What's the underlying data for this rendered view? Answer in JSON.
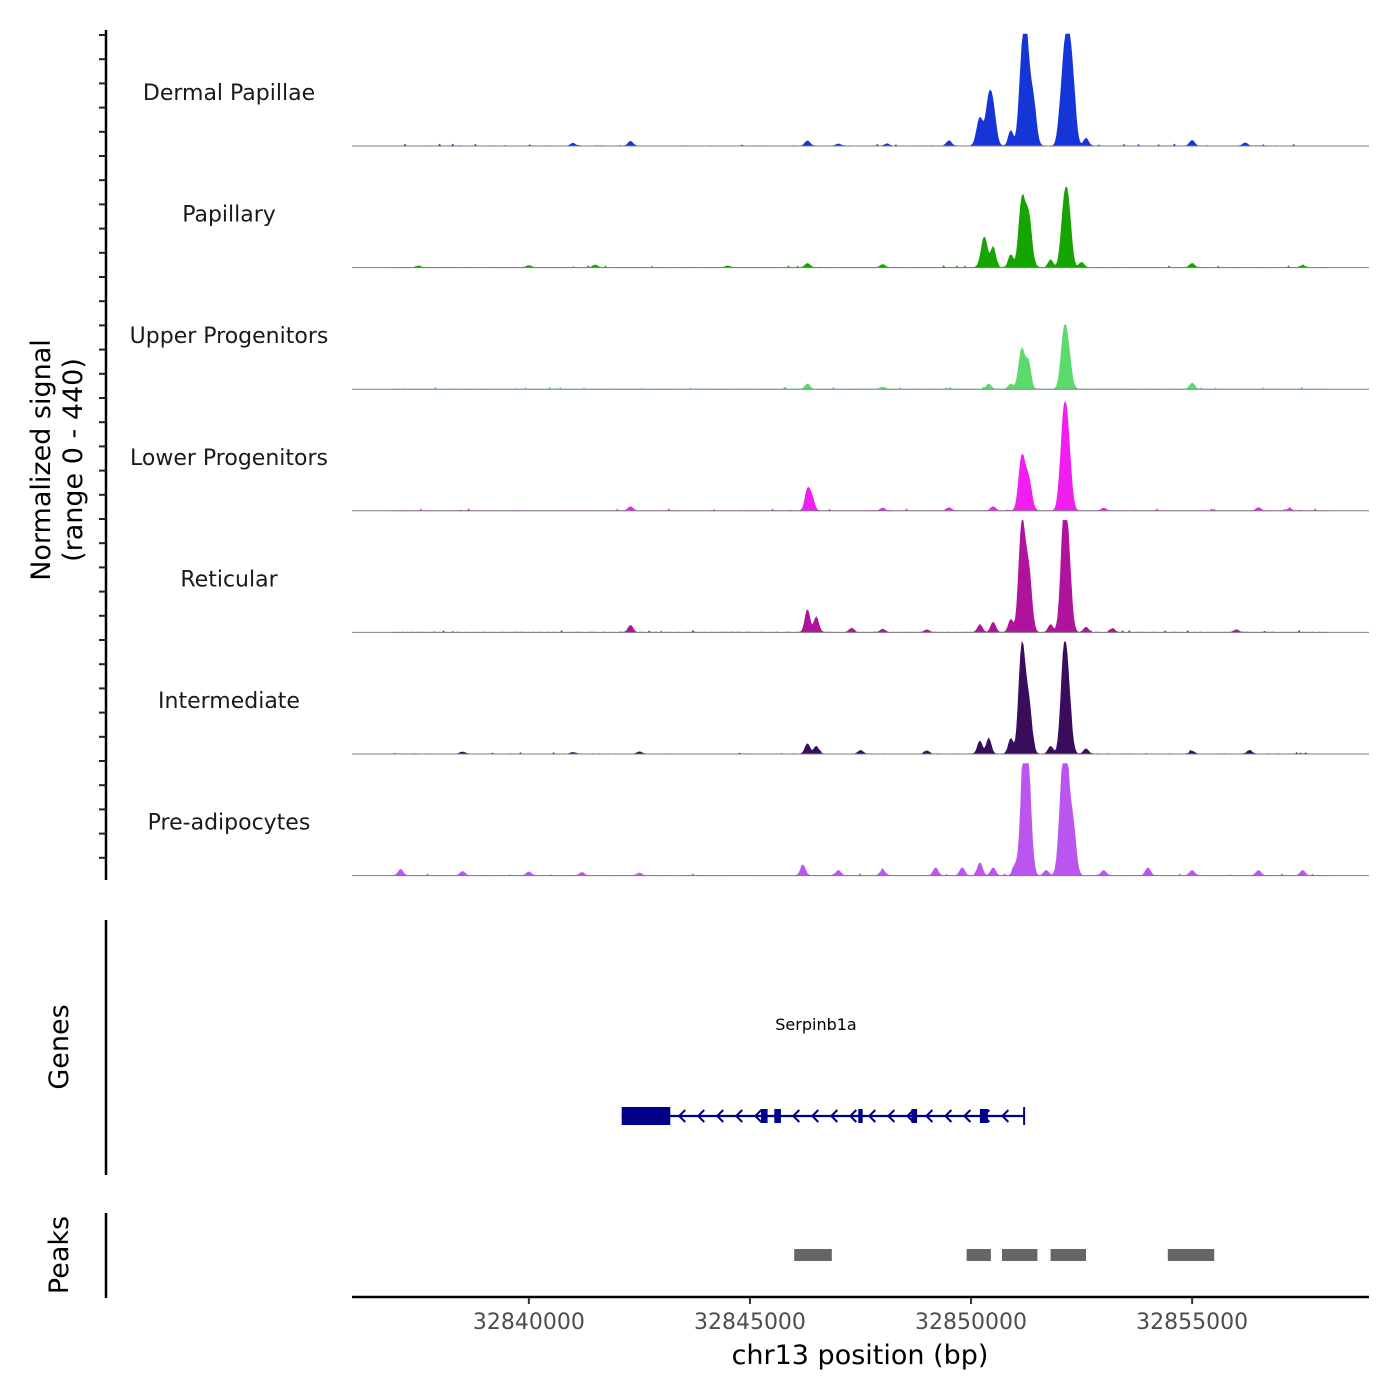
{
  "chart_data": {
    "type": "area",
    "title": "",
    "chromosome": "chr13",
    "xlabel": "chr13 position (bp)",
    "ylabel_line1": "Normalized signal",
    "ylabel_line2": "(range 0 - 440)",
    "xlim": [
      32836000,
      32859000
    ],
    "ylim": [
      0,
      440
    ],
    "x_ticks": [
      32840000,
      32845000,
      32850000,
      32855000
    ],
    "x_tick_labels": [
      "32840000",
      "32845000",
      "32850000",
      "32855000"
    ],
    "series": [
      {
        "name": "Dermal Papillae",
        "color": "#1535d6",
        "peaks": [
          [
            32841000,
            10
          ],
          [
            32842300,
            18
          ],
          [
            32846300,
            20
          ],
          [
            32847000,
            8
          ],
          [
            32848100,
            8
          ],
          [
            32849500,
            20
          ],
          [
            32850200,
            110
          ],
          [
            32850400,
            160
          ],
          [
            32850500,
            120
          ],
          [
            32850900,
            60
          ],
          [
            32851150,
            270
          ],
          [
            32851250,
            360
          ],
          [
            32851400,
            180
          ],
          [
            32852000,
            50
          ],
          [
            32852100,
            260
          ],
          [
            32852200,
            300
          ],
          [
            32852300,
            200
          ],
          [
            32852600,
            30
          ],
          [
            32855000,
            22
          ],
          [
            32856200,
            12
          ]
        ]
      },
      {
        "name": "Papillary",
        "color": "#16a400",
        "peaks": [
          [
            32837500,
            6
          ],
          [
            32840000,
            8
          ],
          [
            32841500,
            10
          ],
          [
            32844500,
            6
          ],
          [
            32846300,
            16
          ],
          [
            32848000,
            12
          ],
          [
            32850300,
            120
          ],
          [
            32850500,
            80
          ],
          [
            32850900,
            50
          ],
          [
            32851150,
            260
          ],
          [
            32851300,
            200
          ],
          [
            32851800,
            30
          ],
          [
            32852100,
            200
          ],
          [
            32852200,
            210
          ],
          [
            32852500,
            20
          ],
          [
            32855000,
            16
          ],
          [
            32857500,
            8
          ]
        ]
      },
      {
        "name": "Upper Progenitors",
        "color": "#5bdb6e",
        "peaks": [
          [
            32846300,
            20
          ],
          [
            32848000,
            8
          ],
          [
            32850400,
            20
          ],
          [
            32850900,
            20
          ],
          [
            32851150,
            160
          ],
          [
            32851300,
            100
          ],
          [
            32852100,
            200
          ],
          [
            32852200,
            120
          ],
          [
            32855000,
            24
          ]
        ]
      },
      {
        "name": "Lower Progenitors",
        "color": "#f01ef0",
        "peaks": [
          [
            32842300,
            16
          ],
          [
            32846300,
            80
          ],
          [
            32846400,
            50
          ],
          [
            32848000,
            10
          ],
          [
            32849500,
            12
          ],
          [
            32850500,
            16
          ],
          [
            32851150,
            210
          ],
          [
            32851300,
            120
          ],
          [
            32852000,
            30
          ],
          [
            32852100,
            330
          ],
          [
            32852200,
            210
          ],
          [
            32853000,
            10
          ],
          [
            32856500,
            12
          ],
          [
            32857200,
            8
          ]
        ]
      },
      {
        "name": "Reticular",
        "color": "#b0139b",
        "peaks": [
          [
            32842300,
            28
          ],
          [
            32846300,
            90
          ],
          [
            32846500,
            60
          ],
          [
            32847300,
            16
          ],
          [
            32848000,
            12
          ],
          [
            32849000,
            10
          ],
          [
            32850200,
            30
          ],
          [
            32850500,
            40
          ],
          [
            32850900,
            50
          ],
          [
            32851150,
            420
          ],
          [
            32851300,
            240
          ],
          [
            32851800,
            30
          ],
          [
            32852100,
            420
          ],
          [
            32852200,
            250
          ],
          [
            32852600,
            20
          ],
          [
            32853200,
            14
          ],
          [
            32856000,
            10
          ]
        ]
      },
      {
        "name": "Intermediate",
        "color": "#3a0c5c",
        "peaks": [
          [
            32838500,
            8
          ],
          [
            32841000,
            6
          ],
          [
            32842500,
            8
          ],
          [
            32846300,
            40
          ],
          [
            32846500,
            30
          ],
          [
            32847500,
            14
          ],
          [
            32849000,
            12
          ],
          [
            32850200,
            50
          ],
          [
            32850400,
            60
          ],
          [
            32850900,
            60
          ],
          [
            32851150,
            420
          ],
          [
            32851300,
            200
          ],
          [
            32851800,
            30
          ],
          [
            32852100,
            360
          ],
          [
            32852200,
            200
          ],
          [
            32852600,
            20
          ],
          [
            32855000,
            10
          ],
          [
            32856300,
            14
          ]
        ]
      },
      {
        "name": "Pre-adipocytes",
        "color": "#bb55f0",
        "peaks": [
          [
            32837100,
            24
          ],
          [
            32838500,
            16
          ],
          [
            32840000,
            14
          ],
          [
            32841200,
            12
          ],
          [
            32842500,
            10
          ],
          [
            32846200,
            40
          ],
          [
            32847000,
            20
          ],
          [
            32848000,
            22
          ],
          [
            32849200,
            30
          ],
          [
            32849800,
            30
          ],
          [
            32850200,
            50
          ],
          [
            32850500,
            30
          ],
          [
            32851000,
            40
          ],
          [
            32851200,
            500
          ],
          [
            32851300,
            300
          ],
          [
            32851700,
            20
          ],
          [
            32852050,
            260
          ],
          [
            32852150,
            420
          ],
          [
            32852300,
            200
          ],
          [
            32853000,
            20
          ],
          [
            32854000,
            30
          ],
          [
            32855000,
            20
          ],
          [
            32856500,
            20
          ],
          [
            32857500,
            20
          ]
        ]
      }
    ],
    "gene": {
      "name": "Serpinb1a",
      "strand": "-",
      "start": 32842100,
      "end": 32851200,
      "exons": [
        [
          32842100,
          32843200
        ],
        [
          32845250,
          32845400
        ],
        [
          32845550,
          32845700
        ],
        [
          32847450,
          32847550
        ],
        [
          32848650,
          32848780
        ],
        [
          32850200,
          32850380
        ]
      ]
    },
    "peak_regions": [
      [
        32846000,
        32846850
      ],
      [
        32849900,
        32850450
      ],
      [
        32850700,
        32851500
      ],
      [
        32851800,
        32852600
      ],
      [
        32854450,
        32855500
      ]
    ],
    "panel_labels": {
      "genes": "Genes",
      "peaks": "Peaks"
    }
  }
}
